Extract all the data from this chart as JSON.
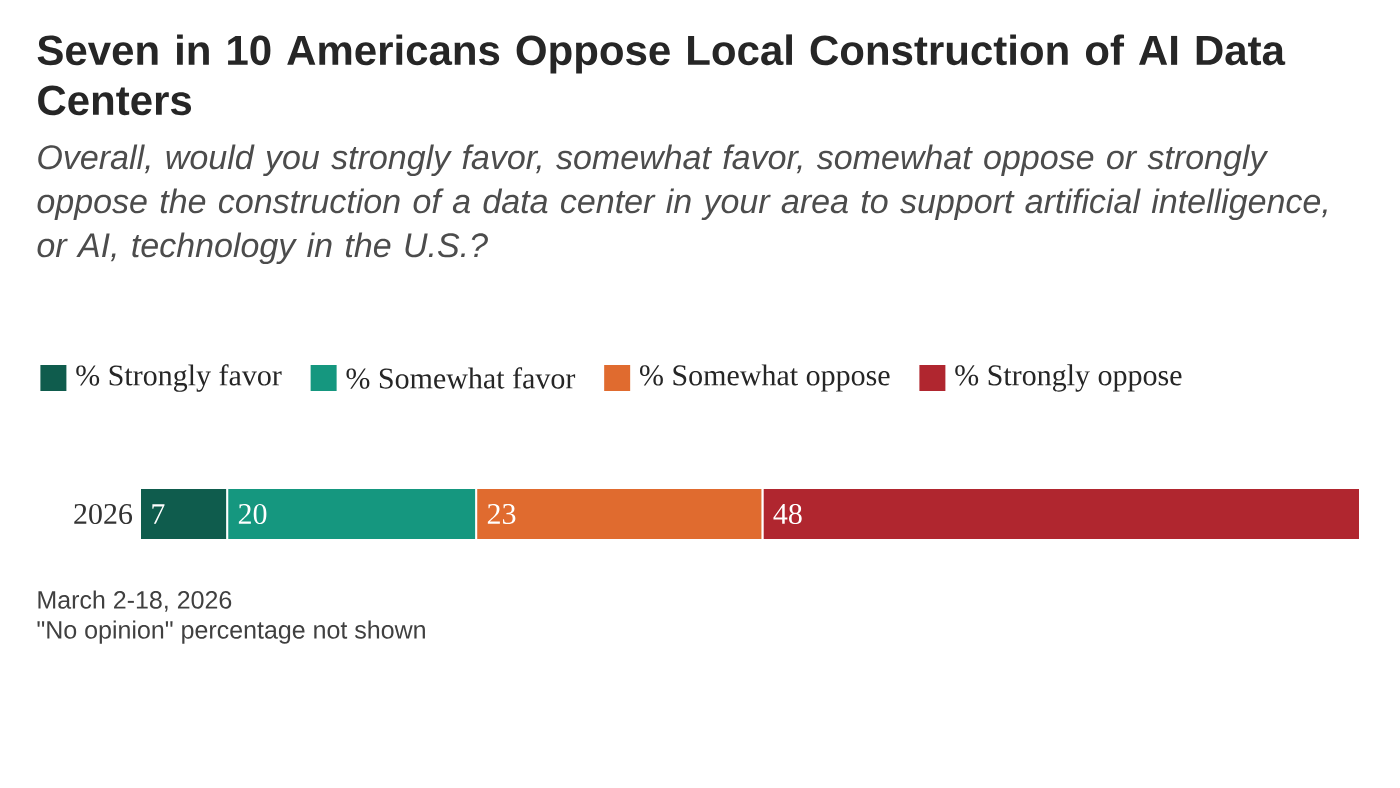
{
  "chart_data": {
    "type": "bar",
    "orientation": "horizontal",
    "stacked": true,
    "data_labels": true,
    "legend": "top",
    "title": "Seven in 10 Americans Oppose Local Construction of AI Data Centers",
    "subtitle": "Overall, would you strongly favor, somewhat favor, somewhat oppose or strongly oppose the construction of a data center in your area to support artificial intelligence, or AI, technology in the U.S.?",
    "categories": [
      "2026"
    ],
    "series": [
      {
        "name": "% Strongly favor",
        "color": "#0f5c4d",
        "values": [
          7
        ]
      },
      {
        "name": "% Somewhat favor",
        "color": "#15977f",
        "values": [
          20
        ]
      },
      {
        "name": "% Somewhat oppose",
        "color": "#e06b2f",
        "values": [
          23
        ]
      },
      {
        "name": "% Strongly oppose",
        "color": "#b0262f",
        "values": [
          48
        ]
      }
    ],
    "annotations": [
      "March 2-18, 2026",
      "\"No opinion\" percentage not shown"
    ]
  }
}
